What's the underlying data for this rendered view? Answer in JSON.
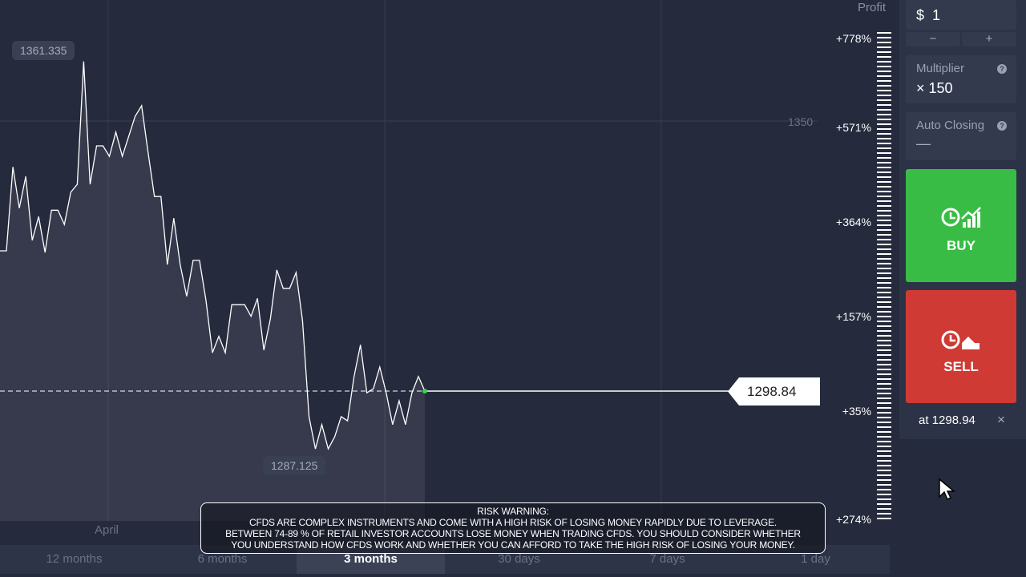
{
  "chart_data": {
    "type": "line",
    "y_reference": 1350,
    "current_price": 1298.84,
    "high_label": "1361.335",
    "low_label": "1287.125",
    "x_tick": "April",
    "grid_label": "1350",
    "prices": [
      1325.4,
      1325.4,
      1341.3,
      1333.5,
      1339.5,
      1327.4,
      1331.9,
      1325.1,
      1333.1,
      1333.1,
      1330.4,
      1336.5,
      1338.0,
      1361.3,
      1338.0,
      1345.3,
      1345.3,
      1343.3,
      1347.9,
      1343.3,
      1347.1,
      1350.9,
      1352.9,
      1344.1,
      1335.7,
      1335.7,
      1322.8,
      1331.6,
      1322.8,
      1316.8,
      1323.6,
      1323.6,
      1316.0,
      1306.1,
      1309.2,
      1306.1,
      1315.2,
      1315.2,
      1315.2,
      1313.0,
      1316.4,
      1306.6,
      1312.5,
      1321.8,
      1318.3,
      1318.3,
      1321.3,
      1312.2,
      1294.0,
      1287.9,
      1292.5,
      1287.9,
      1290.2,
      1294.0,
      1293.2,
      1301.6,
      1307.6,
      1298.5,
      1299.3,
      1303.4,
      1298.5,
      1292.5,
      1297.0,
      1292.5,
      1298.5,
      1301.6,
      1298.84
    ]
  },
  "price_tag": "1298.84",
  "profit_scale": {
    "title": "Profit",
    "labels": [
      "+778%",
      "+571%",
      "+364%",
      "+157%",
      "+35%",
      "+274%"
    ]
  },
  "amount": {
    "currency": "$",
    "value": "1",
    "minus": "−",
    "plus": "+"
  },
  "multiplier": {
    "title": "Multiplier",
    "value": "× 150",
    "help": "?"
  },
  "auto_closing": {
    "title": "Auto Closing",
    "value": "—",
    "help": "?"
  },
  "buy": {
    "label": "BUY",
    "color": "#38bc45"
  },
  "sell": {
    "label": "SELL",
    "color": "#d03a34"
  },
  "pending": {
    "text": "at 1298.94",
    "close": "×"
  },
  "tabs": [
    "12 months",
    "6 months",
    "3 months",
    "30 days",
    "7 days",
    "1 day"
  ],
  "active_tab": "3 months",
  "warning": {
    "title": "RISK WARNING:",
    "line1": "CFDS ARE COMPLEX INSTRUMENTS AND COME WITH A HIGH RISK OF LOSING MONEY RAPIDLY DUE TO LEVERAGE.",
    "line2": "BETWEEN 74-89 % OF RETAIL INVESTOR ACCOUNTS LOSE MONEY WHEN TRADING CFDS. YOU SHOULD CONSIDER WHETHER",
    "line3": "YOU UNDERSTAND HOW CFDS WORK AND WHETHER YOU CAN AFFORD TO TAKE THE HIGH RISK OF LOSING YOUR MONEY."
  }
}
